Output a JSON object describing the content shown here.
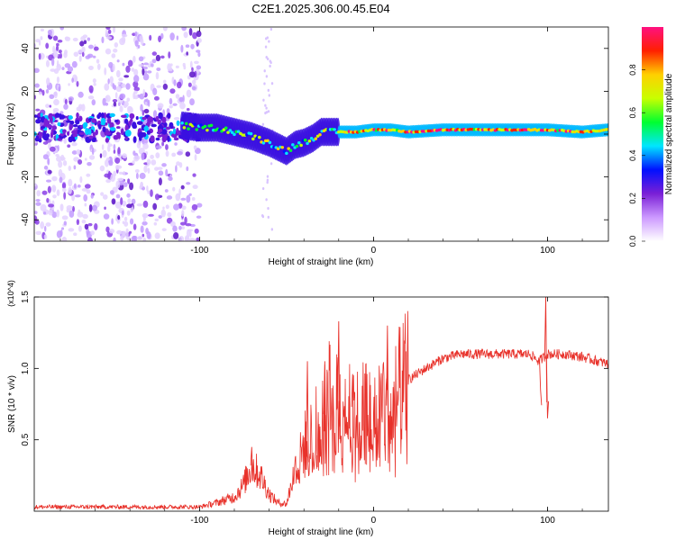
{
  "chart_data": [
    {
      "type": "heatmap",
      "title": "C2E1.2025.306.00.45.E04",
      "xlabel": "Height of straight line (km)",
      "ylabel": "Frequency (Hz)",
      "xlim": [
        -195,
        135
      ],
      "ylim": [
        -50,
        50
      ],
      "xticks": [
        -100,
        0,
        100
      ],
      "xtick_labels": [
        "-100",
        "0",
        "100"
      ],
      "yticks": [
        -40,
        -20,
        0,
        20,
        40
      ],
      "ytick_labels": [
        "-40",
        "-20",
        "0",
        "20",
        "40"
      ],
      "colorbar": {
        "label": "Normalized spectral amplitude",
        "range": [
          0,
          1
        ],
        "ticks": [
          0,
          0.2,
          0.4,
          0.6,
          0.8
        ],
        "tick_labels": [
          "0.0",
          "0.2",
          "0.4",
          "0.6",
          "0.8"
        ],
        "colors": [
          "#ffffff",
          "#cc99ff",
          "#7a1fd6",
          "#0010ff",
          "#00e6ff",
          "#00ff30",
          "#c8ff00",
          "#ffd000",
          "#ff2000",
          "#ff1080"
        ]
      },
      "ridge": {
        "x": [
          -110,
          -100,
          -90,
          -80,
          -70,
          -60,
          -50,
          -45,
          -40,
          -35,
          -30,
          -25,
          -20,
          -10,
          0,
          10,
          20,
          40,
          60,
          80,
          100,
          120,
          135
        ],
        "y": [
          4,
          3,
          3,
          1,
          -1,
          -4,
          -8,
          -5,
          -4,
          -2,
          1,
          1,
          1,
          1,
          2,
          2,
          1,
          2,
          2,
          2,
          2,
          1,
          2
        ]
      }
    },
    {
      "type": "line",
      "xlabel": "Height of straight line (km)",
      "ylabel": "SNR (10 * v/v)",
      "scale_label": "(x10^4)",
      "xlim": [
        -195,
        135
      ],
      "ylim": [
        0,
        1.5
      ],
      "xticks": [
        -100,
        0,
        100
      ],
      "xtick_labels": [
        "-100",
        "0",
        "100"
      ],
      "yticks": [
        0.5,
        1.0,
        1.5
      ],
      "ytick_labels": [
        "0.5",
        "1.0",
        "1.5"
      ],
      "color": "#e8312a",
      "envelope": {
        "x": [
          -195,
          -150,
          -100,
          -90,
          -80,
          -75,
          -70,
          -65,
          -60,
          -55,
          -50,
          -45,
          -40,
          -35,
          -30,
          -25,
          -20,
          -15,
          -10,
          -5,
          0,
          5,
          10,
          15,
          20,
          30,
          40,
          50,
          60,
          80,
          90,
          95,
          100,
          105,
          110,
          120,
          135
        ],
        "y": [
          0.03,
          0.03,
          0.03,
          0.06,
          0.1,
          0.18,
          0.32,
          0.25,
          0.12,
          0.06,
          0.05,
          0.3,
          0.45,
          0.55,
          0.6,
          0.8,
          0.72,
          0.85,
          0.65,
          0.75,
          0.6,
          0.8,
          0.7,
          0.85,
          0.92,
          1.0,
          1.07,
          1.1,
          1.1,
          1.1,
          1.1,
          1.05,
          1.1,
          1.1,
          1.1,
          1.08,
          1.03
        ]
      },
      "spikes": [
        {
          "x": -70,
          "y": 0.45
        },
        {
          "x": -38,
          "y": 1.05
        },
        {
          "x": -28,
          "y": 1.05
        },
        {
          "x": -20,
          "y": 1.33
        },
        {
          "x": -12,
          "y": 0.96
        },
        {
          "x": 8,
          "y": 1.3
        },
        {
          "x": 96,
          "y": 0.85
        },
        {
          "x": 99,
          "y": 1.5
        },
        {
          "x": 100,
          "y": 0.65
        }
      ]
    }
  ]
}
